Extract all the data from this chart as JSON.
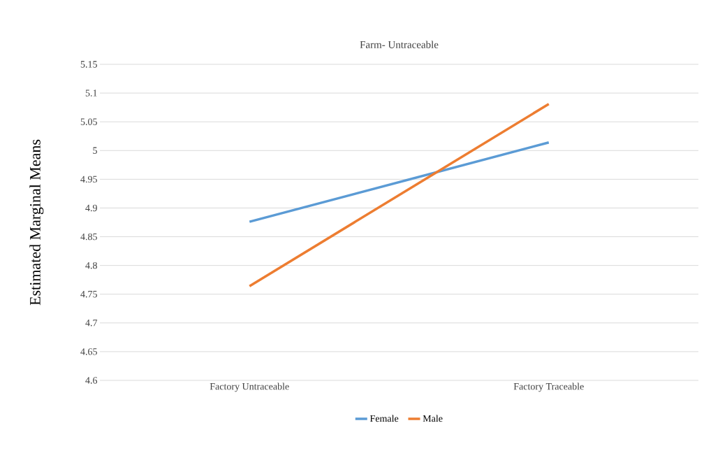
{
  "chart_data": {
    "type": "line",
    "title": "Farm- Untraceable",
    "ylabel": "Estimated Marginal Means",
    "categories": [
      "Factory Untraceable",
      "Factory Traceable"
    ],
    "series": [
      {
        "name": "Female",
        "color": "#5b9bd5",
        "values": [
          4.876,
          5.014
        ]
      },
      {
        "name": "Male",
        "color": "#ed7d31",
        "values": [
          4.764,
          5.081
        ]
      }
    ],
    "ylim": [
      4.6,
      5.15
    ],
    "yticks": [
      4.6,
      4.65,
      4.7,
      4.75,
      4.8,
      4.85,
      4.9,
      4.95,
      5,
      5.05,
      5.1,
      5.15
    ],
    "grid": "y",
    "legend": "bottom",
    "marker": "none",
    "line_style": "solid"
  }
}
